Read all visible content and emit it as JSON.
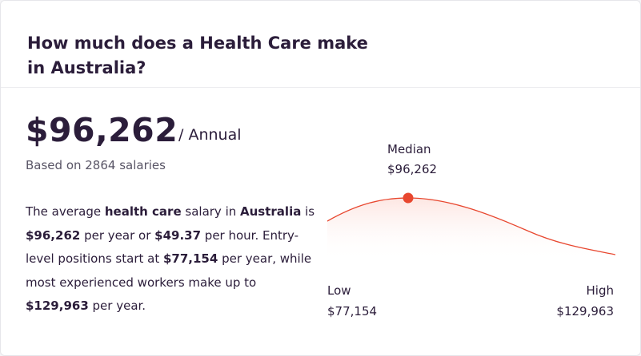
{
  "title": "How much does a Health Care make in Australia?",
  "salary": {
    "amount": "$96,262",
    "period": "/ Annual",
    "based_on": "Based on 2864 salaries"
  },
  "description": {
    "p1": "The average ",
    "job": "health care",
    "p2": " salary in ",
    "location": "Australia",
    "p3": " is ",
    "yearly": "$96,262",
    "p4": " per year or ",
    "hourly": "$49.37",
    "p5": " per hour. Entry-level positions start at ",
    "entry": "$77,154",
    "p6": " per year, while most experienced workers make up to ",
    "top": "$129,963",
    "p7": " per year."
  },
  "distribution": {
    "median_label": "Median",
    "median_value": "$96,262",
    "low_label": "Low",
    "low_value": "$77,154",
    "high_label": "High",
    "high_value": "$129,963",
    "curve_color": "#e8472f",
    "fill_color": "#fde6e2"
  }
}
